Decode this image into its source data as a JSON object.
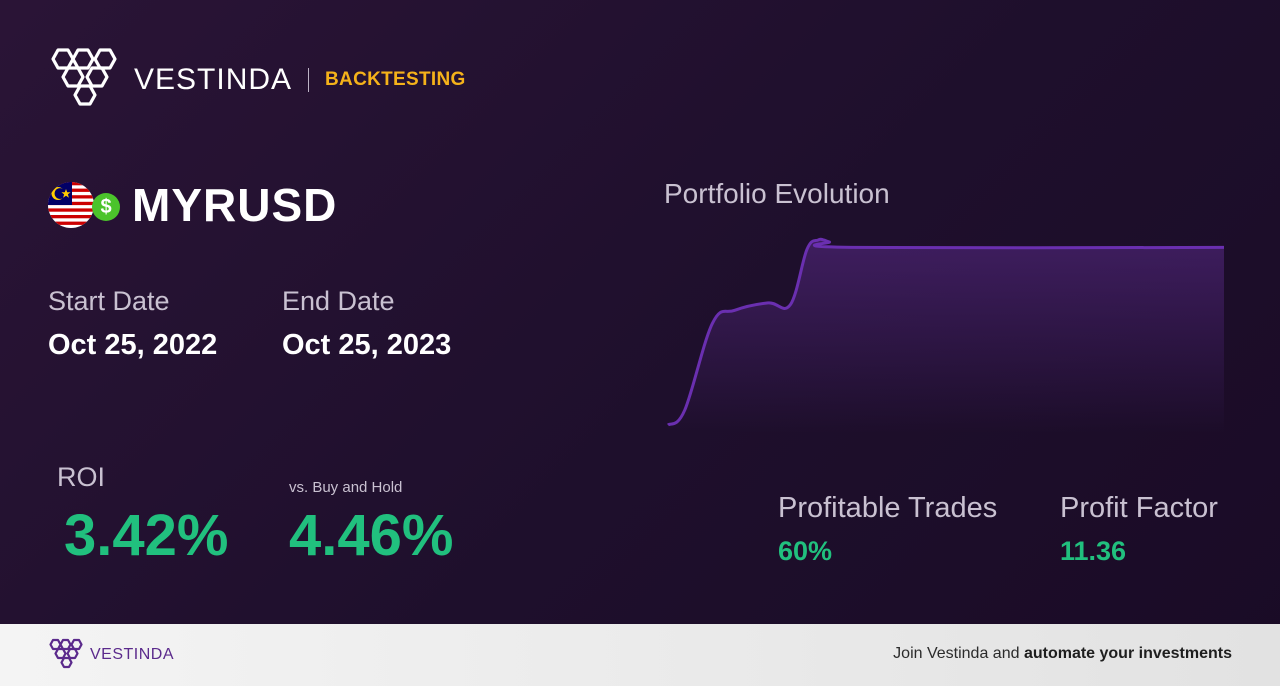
{
  "header": {
    "brand": "VESTINDA",
    "product": "BACKTESTING",
    "logo_icon": "vestinda-hexagon-logo-icon"
  },
  "asset": {
    "symbol": "MYRUSD",
    "flag_icon": "malaysia-flag-icon",
    "currency_icon": "dollar-icon"
  },
  "dates": {
    "start_label": "Start Date",
    "start_value": "Oct 25, 2022",
    "end_label": "End Date",
    "end_value": "Oct 25, 2023"
  },
  "returns": {
    "roi_label": "ROI",
    "roi_value": "3.42%",
    "bh_label": "vs. Buy and Hold",
    "bh_value": "4.46%"
  },
  "chart": {
    "title": "Portfolio Evolution"
  },
  "chart_data": {
    "type": "area",
    "title": "Portfolio Evolution",
    "xlabel": "",
    "ylabel": "",
    "grid": false,
    "x": [
      0,
      3,
      8,
      12,
      18,
      22,
      25,
      27,
      28,
      29,
      33,
      100
    ],
    "values": [
      0,
      8,
      55,
      62,
      66,
      65,
      95,
      100,
      100,
      99,
      96,
      96
    ],
    "color": "#6a2fb0"
  },
  "stats": {
    "profitable_label": "Profitable Trades",
    "profitable_value": "60%",
    "factor_label": "Profit Factor",
    "factor_value": "11.36"
  },
  "footer": {
    "brand": "VESTINDA",
    "cta_prefix": "Join Vestinda and ",
    "cta_bold": "automate your investments"
  },
  "colors": {
    "accent_green": "#21c07e",
    "accent_gold": "#f5b21a",
    "brand_purple": "#5b2a8c"
  }
}
